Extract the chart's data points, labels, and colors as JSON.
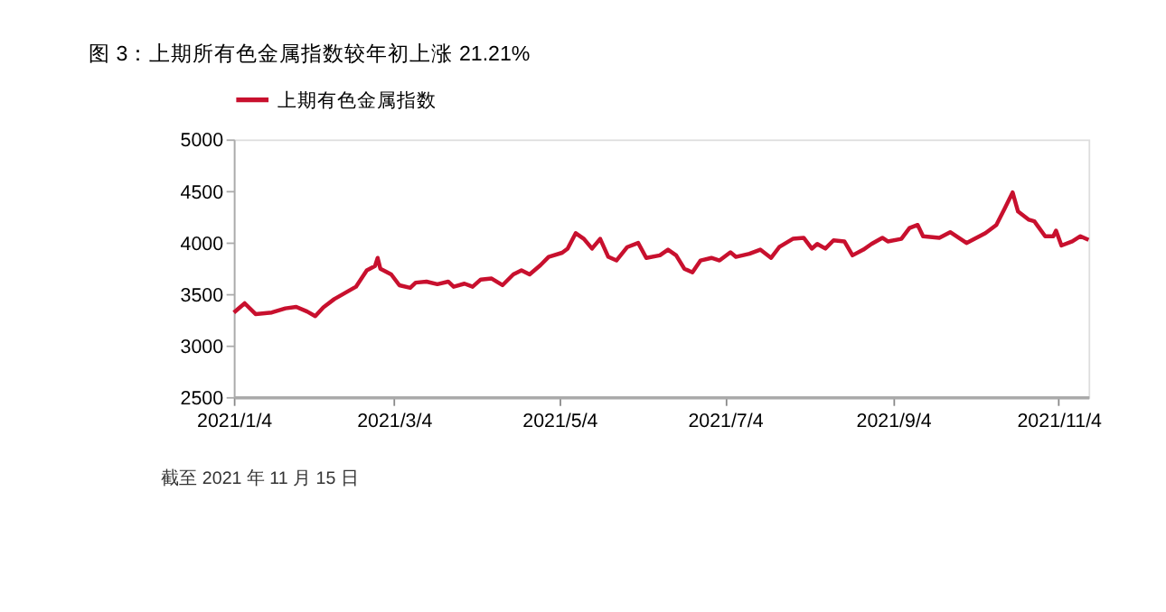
{
  "chart_data": {
    "type": "line",
    "title": "图 3：上期所有色金属指数较年初上涨 21.21%",
    "x": [
      "2021-01-04",
      "2021-01-08",
      "2021-01-12",
      "2021-01-18",
      "2021-01-23",
      "2021-01-27",
      "2021-01-31",
      "2021-02-03",
      "2021-02-06",
      "2021-02-10",
      "2021-02-18",
      "2021-02-22",
      "2021-02-25",
      "2021-02-26",
      "2021-02-27",
      "2021-03-03",
      "2021-03-06",
      "2021-03-10",
      "2021-03-12",
      "2021-03-16",
      "2021-03-20",
      "2021-03-24",
      "2021-03-26",
      "2021-03-30",
      "2021-04-02",
      "2021-04-05",
      "2021-04-09",
      "2021-04-13",
      "2021-04-17",
      "2021-04-20",
      "2021-04-23",
      "2021-04-27",
      "2021-04-30",
      "2021-05-05",
      "2021-05-07",
      "2021-05-10",
      "2021-05-13",
      "2021-05-16",
      "2021-05-19",
      "2021-05-22",
      "2021-05-25",
      "2021-05-29",
      "2021-06-02",
      "2021-06-05",
      "2021-06-10",
      "2021-06-13",
      "2021-06-16",
      "2021-06-19",
      "2021-06-22",
      "2021-06-25",
      "2021-06-29",
      "2021-07-02",
      "2021-07-06",
      "2021-07-08",
      "2021-07-13",
      "2021-07-17",
      "2021-07-21",
      "2021-07-24",
      "2021-07-29",
      "2021-08-02",
      "2021-08-05",
      "2021-08-07",
      "2021-08-10",
      "2021-08-13",
      "2021-08-17",
      "2021-08-20",
      "2021-08-24",
      "2021-08-27",
      "2021-08-31",
      "2021-09-02",
      "2021-09-07",
      "2021-09-10",
      "2021-09-13",
      "2021-09-15",
      "2021-09-21",
      "2021-09-25",
      "2021-10-01",
      "2021-10-08",
      "2021-10-12",
      "2021-10-15",
      "2021-10-18",
      "2021-10-20",
      "2021-10-24",
      "2021-10-26",
      "2021-10-30",
      "2021-11-02",
      "2021-11-03",
      "2021-11-05",
      "2021-11-09",
      "2021-11-12",
      "2021-11-15"
    ],
    "series": [
      {
        "name": "上期有色金属指数",
        "color": "#c8102e",
        "values": [
          3320,
          3410,
          3305,
          3320,
          3360,
          3375,
          3330,
          3285,
          3370,
          3450,
          3570,
          3730,
          3770,
          3850,
          3745,
          3690,
          3585,
          3560,
          3610,
          3620,
          3595,
          3620,
          3570,
          3600,
          3570,
          3640,
          3650,
          3585,
          3690,
          3730,
          3690,
          3780,
          3860,
          3900,
          3940,
          4090,
          4035,
          3940,
          4035,
          3860,
          3825,
          3955,
          3995,
          3850,
          3875,
          3930,
          3875,
          3745,
          3710,
          3825,
          3850,
          3825,
          3905,
          3860,
          3890,
          3930,
          3850,
          3955,
          4035,
          4045,
          3940,
          3985,
          3940,
          4020,
          4010,
          3875,
          3930,
          3985,
          4045,
          4010,
          4035,
          4140,
          4170,
          4060,
          4045,
          4100,
          3995,
          4090,
          4170,
          4325,
          4485,
          4300,
          4220,
          4205,
          4060,
          4060,
          4115,
          3970,
          4010,
          4060,
          4025
        ]
      }
    ],
    "xlim": [
      "2021-01-04",
      "2021-11-15"
    ],
    "xticks": [
      {
        "value": "2021-01-04",
        "label": "2021/1/4"
      },
      {
        "value": "2021-03-04",
        "label": "2021/3/4"
      },
      {
        "value": "2021-05-04",
        "label": "2021/5/4"
      },
      {
        "value": "2021-07-04",
        "label": "2021/7/4"
      },
      {
        "value": "2021-09-04",
        "label": "2021/9/4"
      },
      {
        "value": "2021-11-04",
        "label": "2021/11/4"
      }
    ],
    "ylim": [
      2500,
      5000
    ],
    "yticks": [
      2500,
      3000,
      3500,
      4000,
      4500,
      5000
    ],
    "grid": false,
    "legend": "top",
    "line_style": "solid",
    "marker": "none",
    "annotations": [
      "截至 2021 年 11 月 15 日"
    ]
  }
}
